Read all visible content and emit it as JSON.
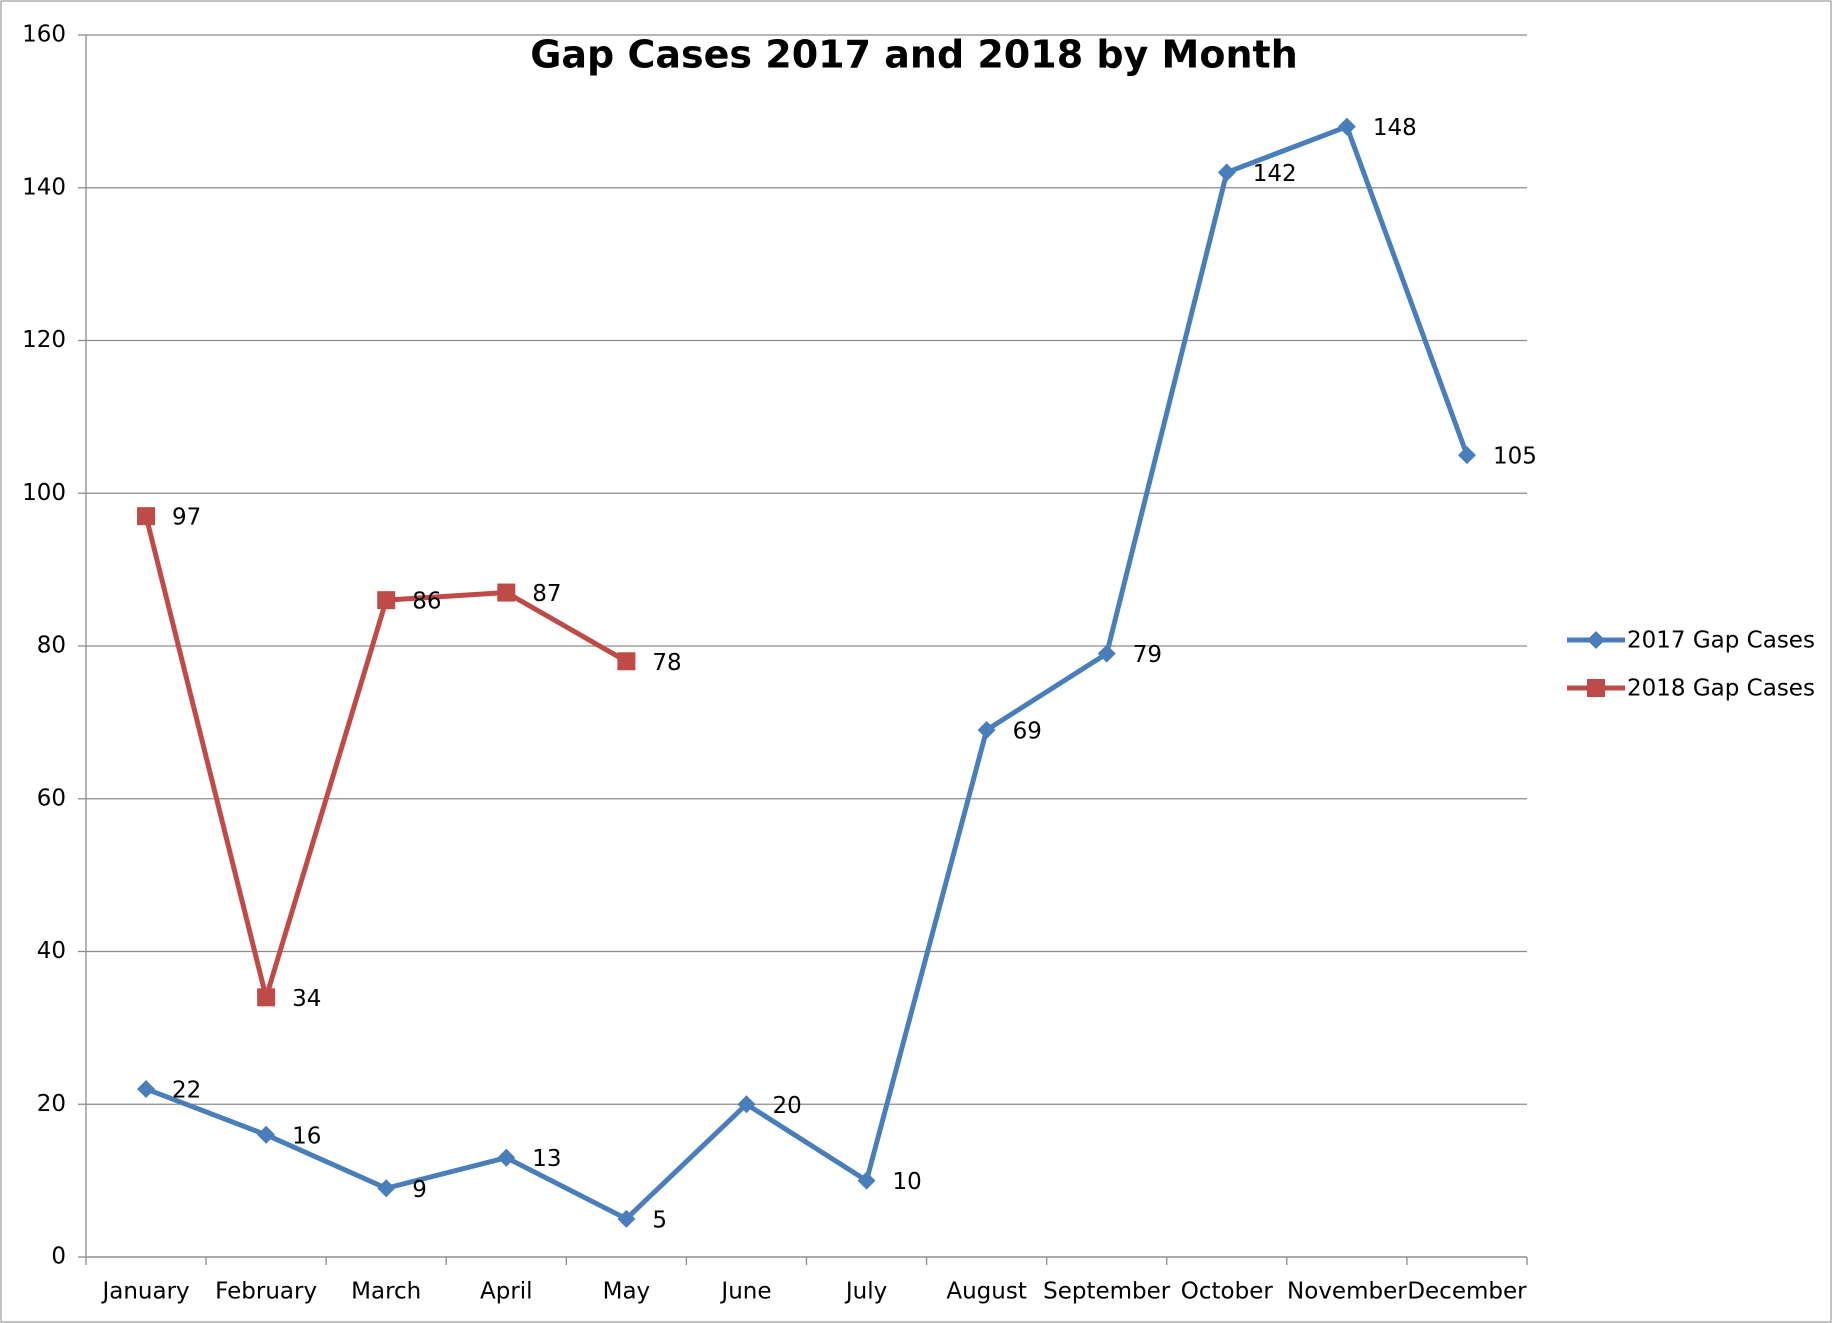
{
  "chart_data": {
    "type": "line",
    "title": "Gap Cases 2017 and 2018 by Month",
    "categories": [
      "January",
      "February",
      "March",
      "April",
      "May",
      "June",
      "July",
      "August",
      "September",
      "October",
      "November",
      "December"
    ],
    "series": [
      {
        "name": "2017 Gap Cases",
        "color": "#4a7ebb",
        "marker": "diamond",
        "values": [
          22,
          16,
          9,
          13,
          5,
          20,
          10,
          69,
          79,
          142,
          148,
          105
        ]
      },
      {
        "name": "2018 Gap Cases",
        "color": "#be4b48",
        "marker": "square",
        "values": [
          97,
          34,
          86,
          87,
          78,
          null,
          null,
          null,
          null,
          null,
          null,
          null
        ]
      }
    ],
    "ylim": [
      0,
      160
    ],
    "yticks": [
      0,
      20,
      40,
      60,
      80,
      100,
      120,
      140,
      160
    ],
    "grid": true,
    "legend": "right",
    "data_labels": true
  }
}
